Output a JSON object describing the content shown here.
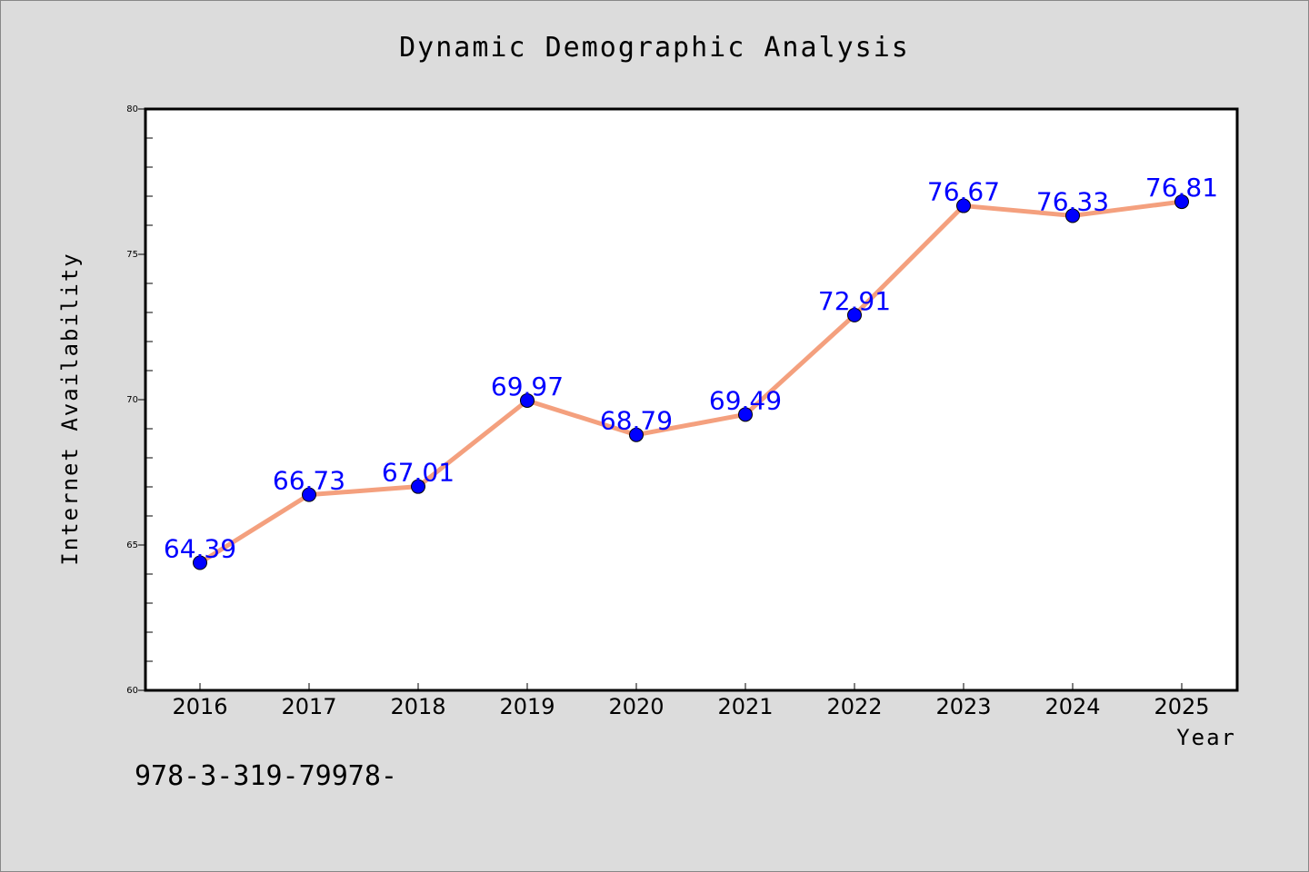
{
  "colors": {
    "background": "#dcdcdc",
    "plot_background": "#ffffff",
    "line": "#f4a07e",
    "marker": "#0000ff",
    "data_label": "#0000ff"
  },
  "footer_text": "978-3-319-79978-",
  "chart_data": {
    "type": "line",
    "title": "Dynamic Demographic Analysis",
    "xlabel": "Year",
    "ylabel": "Internet Availability",
    "categories": [
      "2016",
      "2017",
      "2018",
      "2019",
      "2020",
      "2021",
      "2022",
      "2023",
      "2024",
      "2025"
    ],
    "series": [
      {
        "values": [
          64.39,
          66.73,
          67.01,
          69.97,
          68.79,
          69.49,
          72.91,
          76.67,
          76.33,
          76.81
        ],
        "labels": [
          "64.39",
          "66.73",
          "67.01",
          "69.97",
          "68.79",
          "69.49",
          "72.91",
          "76.67",
          "76.33",
          "76.81"
        ]
      }
    ],
    "ylim": [
      60,
      80
    ],
    "yticks": [
      60,
      65,
      70,
      75,
      80
    ],
    "yticks_minor_step": 1,
    "grid": false,
    "legend": "none"
  }
}
